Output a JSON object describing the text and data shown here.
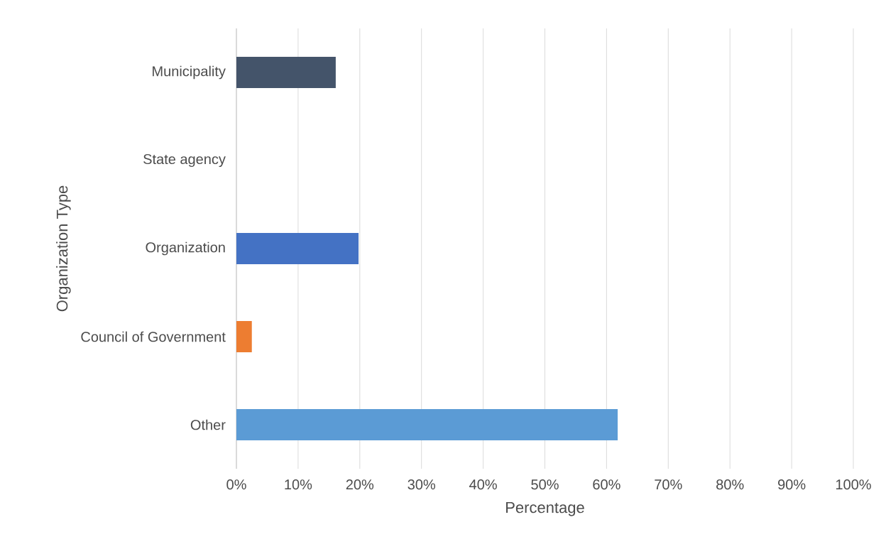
{
  "chart_data": {
    "type": "bar",
    "orientation": "horizontal",
    "xlabel": "Percentage",
    "ylabel": "Organization Type",
    "categories": [
      "Municipality",
      "State agency",
      "Organization",
      "Council of Government",
      "Other"
    ],
    "values": [
      16.1,
      0,
      19.8,
      2.5,
      61.8
    ],
    "colors": [
      "#44546a",
      "#4472c4",
      "#4472c4",
      "#ed7d31",
      "#5b9bd5"
    ],
    "xlim": [
      0,
      100
    ],
    "xticks": [
      {
        "value": 0,
        "label": "0%"
      },
      {
        "value": 10,
        "label": "10%"
      },
      {
        "value": 20,
        "label": "20%"
      },
      {
        "value": 30,
        "label": "30%"
      },
      {
        "value": 40,
        "label": "40%"
      },
      {
        "value": 50,
        "label": "50%"
      },
      {
        "value": 60,
        "label": "60%"
      },
      {
        "value": 70,
        "label": "70%"
      },
      {
        "value": 80,
        "label": "80%"
      },
      {
        "value": 90,
        "label": "90%"
      },
      {
        "value": 100,
        "label": "100%"
      }
    ],
    "grid": "x"
  }
}
